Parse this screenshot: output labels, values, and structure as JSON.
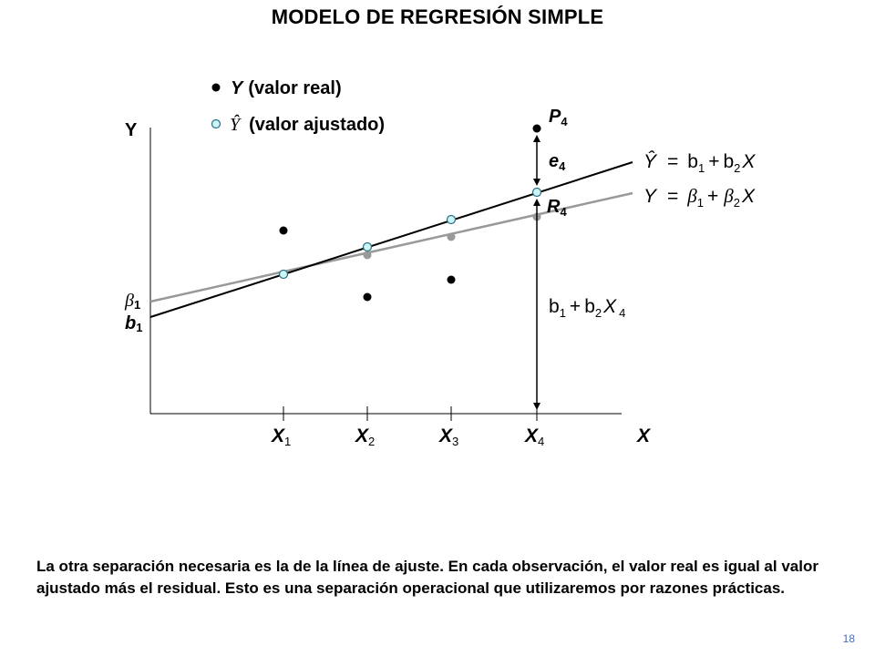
{
  "title": "MODELO DE REGRESIÓN SIMPLE",
  "legend": {
    "actual_symbol": "Y",
    "actual_label": "(valor real)",
    "fitted_symbol": "Ŷ",
    "fitted_label": "(valor ajustado)"
  },
  "axes": {
    "y_label": "Y",
    "x_label": "X"
  },
  "x_ticks": [
    {
      "sym": "X",
      "sub": "1"
    },
    {
      "sym": "X",
      "sub": "2"
    },
    {
      "sym": "X",
      "sub": "3"
    },
    {
      "sym": "X",
      "sub": "4"
    }
  ],
  "intercepts": {
    "beta": "β",
    "beta_sub": "1",
    "b": "b",
    "b_sub": "1"
  },
  "point_labels": {
    "P": "P",
    "P_sub": "4",
    "e": "e",
    "e_sub": "4",
    "R": "R",
    "R_sub": "4"
  },
  "equations": {
    "fitted": {
      "lhs": "Ŷ",
      "eq": "=",
      "t1": "b",
      "t1sub": "1",
      "plus": "+",
      "t2": "b",
      "t2sub": "2",
      "var": "X"
    },
    "true": {
      "lhs": "Y",
      "eq": "=",
      "t1": "β",
      "t1sub": "1",
      "plus": "+",
      "t2": "β",
      "t2sub": "2",
      "var": "X"
    },
    "fitted_value": {
      "t1": "b",
      "t1sub": "1",
      "plus": "+",
      "t2": "b",
      "t2sub": "2",
      "var": "X",
      "varsub": "4"
    }
  },
  "caption": "La otra separación necesaria es la de la línea de ajuste. En cada observación, el valor real es igual al valor ajustado más el residual. Esto es una separación operacional que utilizaremos por razones prácticas.",
  "page_number": "18",
  "colors": {
    "fitted_line": "#000000",
    "true_line": "#999999",
    "fitted_point": "#ccf5f5",
    "actual_point": "#000000",
    "true_point": "#999999"
  }
}
